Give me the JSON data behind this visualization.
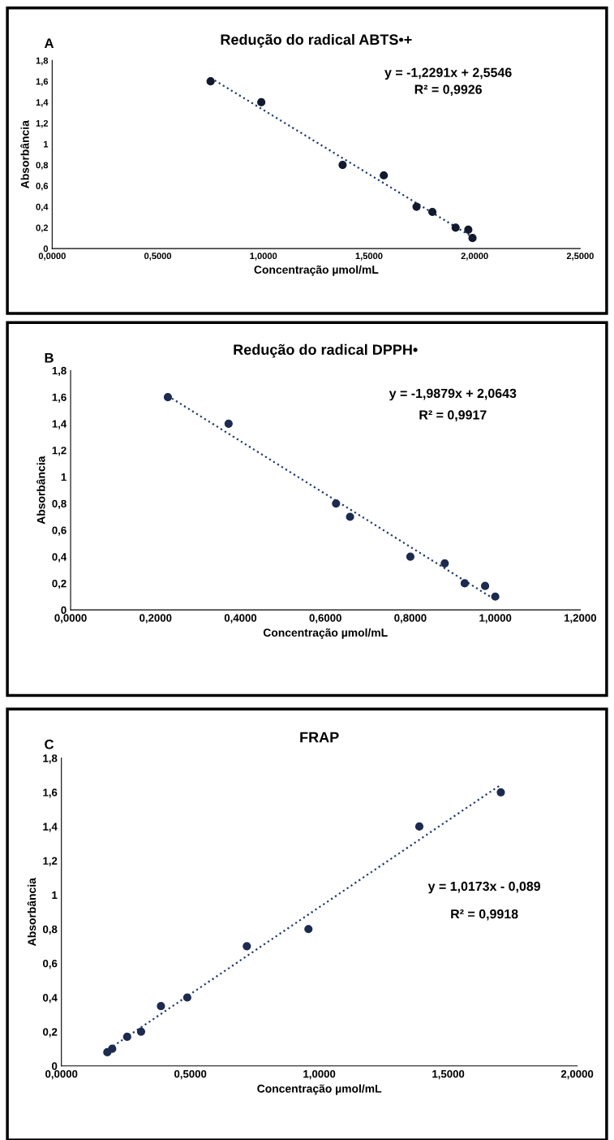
{
  "chart_data": [
    {
      "type": "scatter",
      "title": "Redução do radical ABTS•+",
      "xlabel": "Concentração µmol/mL",
      "ylabel": "Absorbância",
      "annotations": [
        "A",
        "y = -1,2291x + 2,5546",
        "R² = 0,9926"
      ],
      "grid": false,
      "legend": false,
      "xlim": [
        0,
        2.5
      ],
      "xticks": [
        {
          "value": 0,
          "label": "0,0000"
        },
        {
          "value": 0.5,
          "label": "0,5000"
        },
        {
          "value": 1,
          "label": "1,0000"
        },
        {
          "value": 1.5,
          "label": "1,5000"
        },
        {
          "value": 2,
          "label": "2,0000"
        },
        {
          "value": 2.5,
          "label": "2,5000"
        }
      ],
      "ylim": [
        0,
        1.8
      ],
      "yticks": [
        0,
        {
          "value": 0.2,
          "label": "0,2"
        },
        {
          "value": 0.4,
          "label": "0,4"
        },
        {
          "value": 0.6,
          "label": "0,6"
        },
        {
          "value": 0.8,
          "label": "0,8"
        },
        1,
        {
          "value": 1.2,
          "label": "1,2"
        },
        {
          "value": 1.4,
          "label": "1,4"
        },
        {
          "value": 1.6,
          "label": "1,6"
        },
        {
          "value": 1.8,
          "label": "1,8"
        }
      ],
      "series": [
        {
          "marker": "circle",
          "color": "#141a2e",
          "x": [
            0.75,
            0.99,
            1.375,
            1.57,
            1.725,
            1.8,
            1.91,
            1.97,
            1.99
          ],
          "values": [
            1.6,
            1.4,
            0.8,
            0.7,
            0.4,
            0.35,
            0.2,
            0.18,
            0.1
          ]
        },
        {
          "type": "line",
          "marker": "none",
          "line_style": "dotted",
          "color": "#1f3a6e",
          "x": [
            0.75,
            1.99
          ],
          "values": [
            1.633,
            0.109
          ]
        }
      ]
    },
    {
      "type": "scatter",
      "title": "Redução do radical DPPH•",
      "xlabel": "Concentração µmol/mL",
      "ylabel": "Absorbância",
      "annotations": [
        "B",
        "y = -1,9879x + 2,0643",
        "R² = 0,9917"
      ],
      "grid": false,
      "legend": false,
      "xlim": [
        0,
        1.2
      ],
      "xticks": [
        {
          "value": 0,
          "label": "0,0000"
        },
        {
          "value": 0.2,
          "label": "0,2000"
        },
        {
          "value": 0.4,
          "label": "0,4000"
        },
        {
          "value": 0.6,
          "label": "0,6000"
        },
        {
          "value": 0.8,
          "label": "0,8000"
        },
        {
          "value": 1,
          "label": "1,0000"
        },
        {
          "value": 1.2,
          "label": "1,2000"
        }
      ],
      "ylim": [
        0,
        1.8
      ],
      "yticks": [
        0,
        {
          "value": 0.2,
          "label": "0,2"
        },
        {
          "value": 0.4,
          "label": "0,4"
        },
        {
          "value": 0.6,
          "label": "0,6"
        },
        {
          "value": 0.8,
          "label": "0,8"
        },
        1,
        {
          "value": 1.2,
          "label": "1,2"
        },
        {
          "value": 1.4,
          "label": "1,4"
        },
        {
          "value": 1.6,
          "label": "1,6"
        },
        {
          "value": 1.8,
          "label": "1,8"
        }
      ],
      "series": [
        {
          "marker": "circle",
          "color": "#1c2b4f",
          "x": [
            0.229,
            0.372,
            0.625,
            0.658,
            0.8,
            0.881,
            0.928,
            0.976,
            1.0
          ],
          "values": [
            1.6,
            1.4,
            0.8,
            0.7,
            0.4,
            0.35,
            0.2,
            0.18,
            0.1
          ]
        },
        {
          "type": "line",
          "marker": "none",
          "line_style": "dotted",
          "color": "#1f3a6e",
          "x": [
            0.229,
            1.0
          ],
          "values": [
            1.609,
            0.076
          ]
        }
      ]
    },
    {
      "type": "scatter",
      "title": "FRAP",
      "xlabel": "Concentração µmol/mL",
      "ylabel": "Absorbância",
      "annotations": [
        "C",
        "y = 1,0173x - 0,089",
        "R² = 0,9918"
      ],
      "grid": false,
      "legend": false,
      "xlim": [
        0,
        2
      ],
      "xticks": [
        {
          "value": 0,
          "label": "0,0000"
        },
        {
          "value": 0.5,
          "label": "0,5000"
        },
        {
          "value": 1,
          "label": "1,0000"
        },
        {
          "value": 1.5,
          "label": "1,5000"
        },
        {
          "value": 2,
          "label": "2,0000"
        }
      ],
      "ylim": [
        0,
        1.8
      ],
      "yticks": [
        0,
        {
          "value": 0.2,
          "label": "0,2"
        },
        {
          "value": 0.4,
          "label": "0,4"
        },
        {
          "value": 0.6,
          "label": "0,6"
        },
        {
          "value": 0.8,
          "label": "0,8"
        },
        1,
        {
          "value": 1.2,
          "label": "1,2"
        },
        {
          "value": 1.4,
          "label": "1,4"
        },
        {
          "value": 1.6,
          "label": "1,6"
        },
        {
          "value": 1.8,
          "label": "1,8"
        }
      ],
      "series": [
        {
          "marker": "circle",
          "color": "#1c2b4f",
          "x": [
            0.178,
            0.197,
            0.255,
            0.309,
            0.386,
            0.488,
            0.719,
            0.958,
            1.388,
            1.704
          ],
          "values": [
            0.08,
            0.1,
            0.17,
            0.2,
            0.35,
            0.4,
            0.7,
            0.8,
            1.4,
            1.6
          ]
        },
        {
          "type": "line",
          "marker": "none",
          "line_style": "dotted",
          "color": "#1f3a6e",
          "x": [
            0.17,
            1.7
          ],
          "values": [
            0.084,
            1.64
          ]
        }
      ]
    }
  ]
}
